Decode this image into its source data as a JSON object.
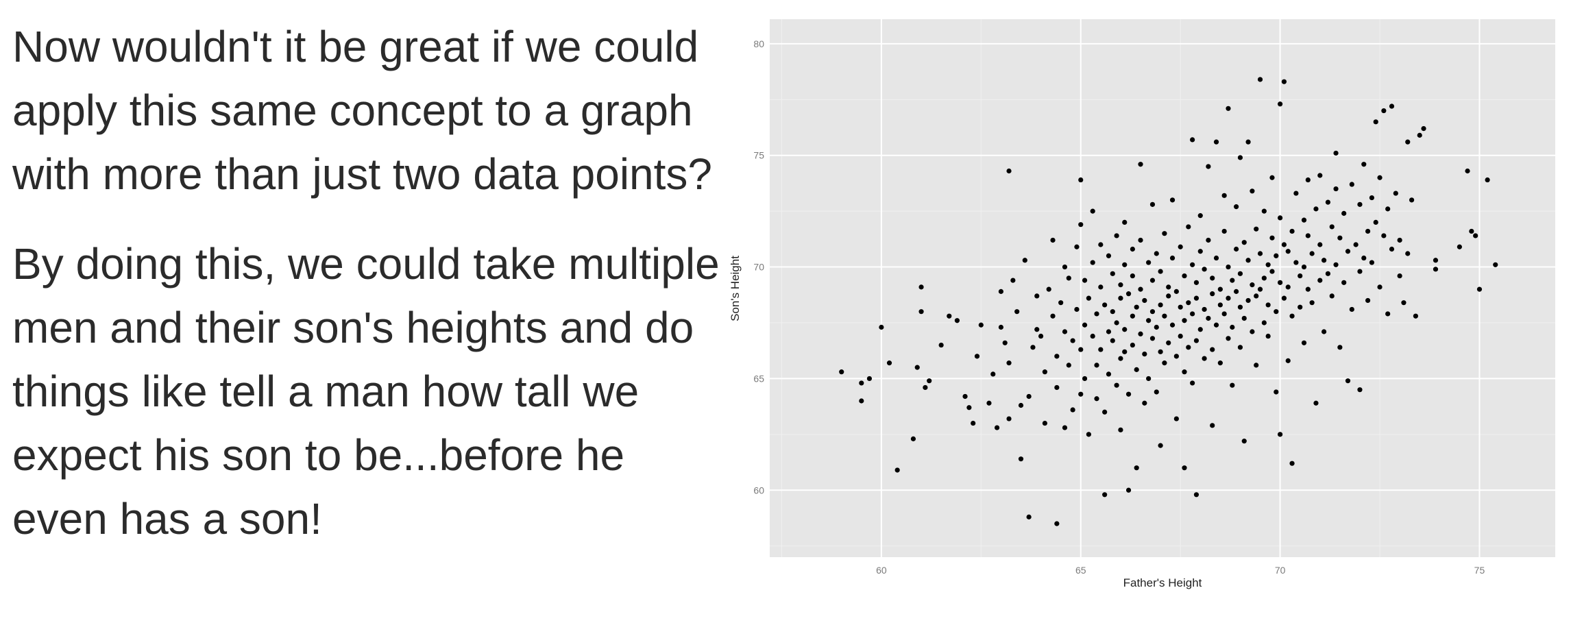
{
  "text": {
    "paragraphs": [
      "Now wouldn't it be great if we could apply this same concept to a graph with more than just two data points?",
      "By doing this, we could take multiple men and their son's heights and do things like tell a man how tall we expect his son to be...before he even has a son!"
    ]
  },
  "chart_data": {
    "type": "scatter",
    "title": "",
    "xlabel": "Father's Height",
    "ylabel": "Son's Height",
    "xlim": [
      57.2,
      76.9
    ],
    "ylim": [
      57,
      81.1
    ],
    "xticks": [
      "60",
      "65",
      "70",
      "75"
    ],
    "xtick_values": [
      60,
      65,
      70,
      75
    ],
    "yticks": [
      "60",
      "65",
      "70",
      "75",
      "80"
    ],
    "ytick_values": [
      60,
      65,
      70,
      75,
      80
    ],
    "grid": true,
    "panel_color": "#e6e6e6",
    "point_color": "#000000",
    "points": [
      [
        59.0,
        65.3
      ],
      [
        59.5,
        64.8
      ],
      [
        59.7,
        65.0
      ],
      [
        59.5,
        64.0
      ],
      [
        60.0,
        67.3
      ],
      [
        60.2,
        65.7
      ],
      [
        60.4,
        60.9
      ],
      [
        60.8,
        62.3
      ],
      [
        60.9,
        65.5
      ],
      [
        61.0,
        69.1
      ],
      [
        61.0,
        68.0
      ],
      [
        61.1,
        64.6
      ],
      [
        61.2,
        64.9
      ],
      [
        61.5,
        66.5
      ],
      [
        61.7,
        67.8
      ],
      [
        61.9,
        67.6
      ],
      [
        62.1,
        64.2
      ],
      [
        62.2,
        63.7
      ],
      [
        62.3,
        63.0
      ],
      [
        62.4,
        66.0
      ],
      [
        62.5,
        67.4
      ],
      [
        62.7,
        63.9
      ],
      [
        62.8,
        65.2
      ],
      [
        62.9,
        62.8
      ],
      [
        63.0,
        68.9
      ],
      [
        63.0,
        67.3
      ],
      [
        63.1,
        66.6
      ],
      [
        63.2,
        65.7
      ],
      [
        63.2,
        63.2
      ],
      [
        63.2,
        74.3
      ],
      [
        63.3,
        69.4
      ],
      [
        63.4,
        68.0
      ],
      [
        63.5,
        63.8
      ],
      [
        63.5,
        61.4
      ],
      [
        63.6,
        70.3
      ],
      [
        63.7,
        64.2
      ],
      [
        63.7,
        58.8
      ],
      [
        63.8,
        66.4
      ],
      [
        63.9,
        67.2
      ],
      [
        63.9,
        68.7
      ],
      [
        64.0,
        66.9
      ],
      [
        64.1,
        65.3
      ],
      [
        64.1,
        63.0
      ],
      [
        64.2,
        69.0
      ],
      [
        64.3,
        67.8
      ],
      [
        64.3,
        71.2
      ],
      [
        64.4,
        66.0
      ],
      [
        64.4,
        64.6
      ],
      [
        64.4,
        58.5
      ],
      [
        64.5,
        68.4
      ],
      [
        64.6,
        70.0
      ],
      [
        64.6,
        62.8
      ],
      [
        64.6,
        67.1
      ],
      [
        64.7,
        65.6
      ],
      [
        64.7,
        69.5
      ],
      [
        64.8,
        66.7
      ],
      [
        64.8,
        63.6
      ],
      [
        64.9,
        68.1
      ],
      [
        64.9,
        70.9
      ],
      [
        65.0,
        66.3
      ],
      [
        65.0,
        64.3
      ],
      [
        65.0,
        71.9
      ],
      [
        65.0,
        73.9
      ],
      [
        65.1,
        69.4
      ],
      [
        65.1,
        67.4
      ],
      [
        65.1,
        65.0
      ],
      [
        65.2,
        68.6
      ],
      [
        65.2,
        62.5
      ],
      [
        65.3,
        66.9
      ],
      [
        65.3,
        70.2
      ],
      [
        65.3,
        72.5
      ],
      [
        65.4,
        67.9
      ],
      [
        65.4,
        65.6
      ],
      [
        65.4,
        64.1
      ],
      [
        65.5,
        69.1
      ],
      [
        65.5,
        71.0
      ],
      [
        65.5,
        66.3
      ],
      [
        65.6,
        68.3
      ],
      [
        65.6,
        63.5
      ],
      [
        65.6,
        59.8
      ],
      [
        65.7,
        70.5
      ],
      [
        65.7,
        67.1
      ],
      [
        65.7,
        65.2
      ],
      [
        65.8,
        69.7
      ],
      [
        65.8,
        68.0
      ],
      [
        65.8,
        66.7
      ],
      [
        65.9,
        71.4
      ],
      [
        65.9,
        64.7
      ],
      [
        65.9,
        67.5
      ],
      [
        66.0,
        69.2
      ],
      [
        66.0,
        68.6
      ],
      [
        66.0,
        65.9
      ],
      [
        66.0,
        62.7
      ],
      [
        66.1,
        70.1
      ],
      [
        66.1,
        67.2
      ],
      [
        66.1,
        66.2
      ],
      [
        66.1,
        72.0
      ],
      [
        66.2,
        68.8
      ],
      [
        66.2,
        64.3
      ],
      [
        66.2,
        60.0
      ],
      [
        66.3,
        69.6
      ],
      [
        66.3,
        67.8
      ],
      [
        66.3,
        66.5
      ],
      [
        66.3,
        70.8
      ],
      [
        66.4,
        68.2
      ],
      [
        66.4,
        65.4
      ],
      [
        66.4,
        61.0
      ],
      [
        66.5,
        71.2
      ],
      [
        66.5,
        67.0
      ],
      [
        66.5,
        69.0
      ],
      [
        66.5,
        74.6
      ],
      [
        66.6,
        68.5
      ],
      [
        66.6,
        66.1
      ],
      [
        66.6,
        63.9
      ],
      [
        66.7,
        70.2
      ],
      [
        66.7,
        67.6
      ],
      [
        66.7,
        65.0
      ],
      [
        66.8,
        69.4
      ],
      [
        66.8,
        68.0
      ],
      [
        66.8,
        66.8
      ],
      [
        66.8,
        72.8
      ],
      [
        66.9,
        70.6
      ],
      [
        66.9,
        67.3
      ],
      [
        66.9,
        64.4
      ],
      [
        67.0,
        69.8
      ],
      [
        67.0,
        68.3
      ],
      [
        67.0,
        66.2
      ],
      [
        67.0,
        62.0
      ],
      [
        67.1,
        71.5
      ],
      [
        67.1,
        67.8
      ],
      [
        67.1,
        65.7
      ],
      [
        67.2,
        69.1
      ],
      [
        67.2,
        68.7
      ],
      [
        67.2,
        66.6
      ],
      [
        67.3,
        70.4
      ],
      [
        67.3,
        67.4
      ],
      [
        67.3,
        73.0
      ],
      [
        67.4,
        68.9
      ],
      [
        67.4,
        66.0
      ],
      [
        67.4,
        63.2
      ],
      [
        67.5,
        70.9
      ],
      [
        67.5,
        68.2
      ],
      [
        67.5,
        66.9
      ],
      [
        67.6,
        69.6
      ],
      [
        67.6,
        67.6
      ],
      [
        67.6,
        65.3
      ],
      [
        67.6,
        61.0
      ],
      [
        67.7,
        71.8
      ],
      [
        67.7,
        68.4
      ],
      [
        67.7,
        66.4
      ],
      [
        67.8,
        70.1
      ],
      [
        67.8,
        67.9
      ],
      [
        67.8,
        64.8
      ],
      [
        67.8,
        75.7
      ],
      [
        67.9,
        69.3
      ],
      [
        67.9,
        68.6
      ],
      [
        67.9,
        66.7
      ],
      [
        67.9,
        59.8
      ],
      [
        68.0,
        70.7
      ],
      [
        68.0,
        67.2
      ],
      [
        68.0,
        72.3
      ],
      [
        68.1,
        69.9
      ],
      [
        68.1,
        68.1
      ],
      [
        68.1,
        65.9
      ],
      [
        68.2,
        71.2
      ],
      [
        68.2,
        67.7
      ],
      [
        68.2,
        74.5
      ],
      [
        68.3,
        69.5
      ],
      [
        68.3,
        68.8
      ],
      [
        68.3,
        66.3
      ],
      [
        68.3,
        62.9
      ],
      [
        68.4,
        70.4
      ],
      [
        68.4,
        67.4
      ],
      [
        68.4,
        75.6
      ],
      [
        68.5,
        69.0
      ],
      [
        68.5,
        68.3
      ],
      [
        68.5,
        65.7
      ],
      [
        68.6,
        71.6
      ],
      [
        68.6,
        67.9
      ],
      [
        68.6,
        73.2
      ],
      [
        68.7,
        70.0
      ],
      [
        68.7,
        68.6
      ],
      [
        68.7,
        66.8
      ],
      [
        68.7,
        77.1
      ],
      [
        68.8,
        69.4
      ],
      [
        68.8,
        67.3
      ],
      [
        68.8,
        64.7
      ],
      [
        68.9,
        70.8
      ],
      [
        68.9,
        68.9
      ],
      [
        68.9,
        72.7
      ],
      [
        69.0,
        69.7
      ],
      [
        69.0,
        68.2
      ],
      [
        69.0,
        66.4
      ],
      [
        69.0,
        74.9
      ],
      [
        69.1,
        71.1
      ],
      [
        69.1,
        67.7
      ],
      [
        69.1,
        62.2
      ],
      [
        69.2,
        70.3
      ],
      [
        69.2,
        68.5
      ],
      [
        69.2,
        75.6
      ],
      [
        69.3,
        69.2
      ],
      [
        69.3,
        67.1
      ],
      [
        69.3,
        73.4
      ],
      [
        69.4,
        71.7
      ],
      [
        69.4,
        68.7
      ],
      [
        69.4,
        65.6
      ],
      [
        69.5,
        70.6
      ],
      [
        69.5,
        69.0
      ],
      [
        69.5,
        78.4
      ],
      [
        69.6,
        69.5
      ],
      [
        69.6,
        67.5
      ],
      [
        69.6,
        72.5
      ],
      [
        69.7,
        70.1
      ],
      [
        69.7,
        68.3
      ],
      [
        69.7,
        66.9
      ],
      [
        69.8,
        71.3
      ],
      [
        69.8,
        69.8
      ],
      [
        69.8,
        74.0
      ],
      [
        69.9,
        70.5
      ],
      [
        69.9,
        68.0
      ],
      [
        69.9,
        64.4
      ],
      [
        70.0,
        72.2
      ],
      [
        70.0,
        69.3
      ],
      [
        70.0,
        62.5
      ],
      [
        70.0,
        77.3
      ],
      [
        70.1,
        71.0
      ],
      [
        70.1,
        68.6
      ],
      [
        70.1,
        78.3
      ],
      [
        70.2,
        70.7
      ],
      [
        70.2,
        69.1
      ],
      [
        70.2,
        65.8
      ],
      [
        70.3,
        71.6
      ],
      [
        70.3,
        67.8
      ],
      [
        70.3,
        61.2
      ],
      [
        70.4,
        70.2
      ],
      [
        70.4,
        73.3
      ],
      [
        70.5,
        69.6
      ],
      [
        70.5,
        68.2
      ],
      [
        70.6,
        72.1
      ],
      [
        70.6,
        70.0
      ],
      [
        70.6,
        66.6
      ],
      [
        70.7,
        71.4
      ],
      [
        70.7,
        69.0
      ],
      [
        70.7,
        73.9
      ],
      [
        70.8,
        70.6
      ],
      [
        70.8,
        68.4
      ],
      [
        70.9,
        72.6
      ],
      [
        70.9,
        63.9
      ],
      [
        71.0,
        71.0
      ],
      [
        71.0,
        69.4
      ],
      [
        71.0,
        74.1
      ],
      [
        71.1,
        70.3
      ],
      [
        71.1,
        67.1
      ],
      [
        71.2,
        72.9
      ],
      [
        71.2,
        69.7
      ],
      [
        71.3,
        71.8
      ],
      [
        71.3,
        68.7
      ],
      [
        71.4,
        73.5
      ],
      [
        71.4,
        70.1
      ],
      [
        71.4,
        75.1
      ],
      [
        71.5,
        71.3
      ],
      [
        71.5,
        66.4
      ],
      [
        71.6,
        72.4
      ],
      [
        71.6,
        69.3
      ],
      [
        71.7,
        70.7
      ],
      [
        71.7,
        64.9
      ],
      [
        71.8,
        73.7
      ],
      [
        71.8,
        68.1
      ],
      [
        71.9,
        71.0
      ],
      [
        72.0,
        72.8
      ],
      [
        72.0,
        69.8
      ],
      [
        72.0,
        64.5
      ],
      [
        72.1,
        70.4
      ],
      [
        72.1,
        74.6
      ],
      [
        72.2,
        71.6
      ],
      [
        72.2,
        68.5
      ],
      [
        72.3,
        73.1
      ],
      [
        72.3,
        70.2
      ],
      [
        72.4,
        72.0
      ],
      [
        72.4,
        76.5
      ],
      [
        72.5,
        74.0
      ],
      [
        72.5,
        69.1
      ],
      [
        72.6,
        71.4
      ],
      [
        72.6,
        77.0
      ],
      [
        72.7,
        72.6
      ],
      [
        72.7,
        67.9
      ],
      [
        72.8,
        70.8
      ],
      [
        72.8,
        77.2
      ],
      [
        72.9,
        73.3
      ],
      [
        73.0,
        71.2
      ],
      [
        73.0,
        69.6
      ],
      [
        73.1,
        68.4
      ],
      [
        73.2,
        75.6
      ],
      [
        73.2,
        70.6
      ],
      [
        73.3,
        73.0
      ],
      [
        73.4,
        67.8
      ],
      [
        73.5,
        75.9
      ],
      [
        73.6,
        76.2
      ],
      [
        73.9,
        70.3
      ],
      [
        73.9,
        69.9
      ],
      [
        74.5,
        70.9
      ],
      [
        74.7,
        74.3
      ],
      [
        74.8,
        71.6
      ],
      [
        74.9,
        71.4
      ],
      [
        75.0,
        69.0
      ],
      [
        75.2,
        73.9
      ],
      [
        75.4,
        70.1
      ]
    ]
  }
}
